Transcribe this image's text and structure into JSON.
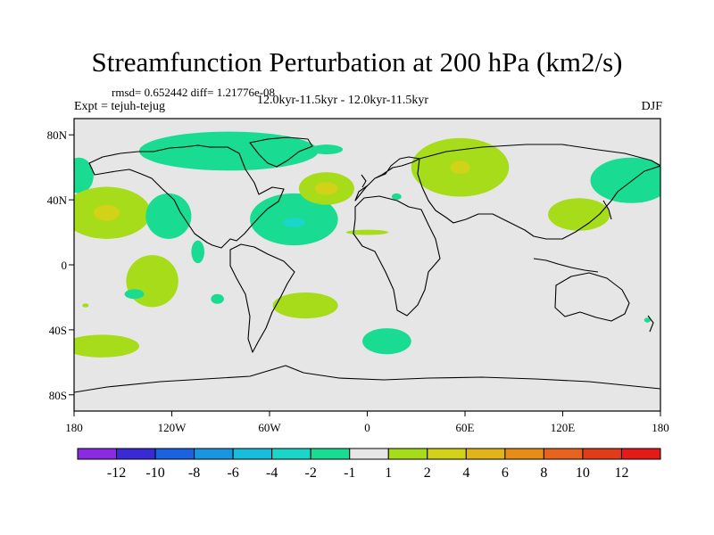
{
  "chart_data": {
    "type": "heatmap",
    "title": "Streamfunction Perturbation at 200 hPa (km2/s)",
    "stats_text": "rmsd= 0.652442 diff= 1.21776e-08",
    "left_label": "Expt = tejuh-tejug",
    "center_label": "12.0kyr-11.5kyr - 12.0kyr-11.5kyr",
    "right_label": "DJF",
    "x_range": [
      -180,
      180
    ],
    "y_range": [
      -90,
      90
    ],
    "x_ticks": [
      {
        "value": -180,
        "label": "180"
      },
      {
        "value": -120,
        "label": "120W"
      },
      {
        "value": -60,
        "label": "60W"
      },
      {
        "value": 0,
        "label": "0"
      },
      {
        "value": 60,
        "label": "60E"
      },
      {
        "value": 120,
        "label": "120E"
      },
      {
        "value": 180,
        "label": "180"
      }
    ],
    "y_ticks": [
      {
        "value": 80,
        "label": "80N"
      },
      {
        "value": 40,
        "label": "40N"
      },
      {
        "value": 0,
        "label": "0"
      },
      {
        "value": -40,
        "label": "40S"
      },
      {
        "value": -80,
        "label": "80S"
      }
    ],
    "colorbar": {
      "colors": [
        "#8a2be2",
        "#3a2ad6",
        "#1a62e0",
        "#1a96e0",
        "#19bddc",
        "#1ad6c8",
        "#19dc92",
        "#e6e6e6",
        "#a6dc19",
        "#d2d219",
        "#e1b419",
        "#e68c19",
        "#e6641e",
        "#e13c19",
        "#e61919"
      ],
      "labels": [
        "-12",
        "-10",
        "-8",
        "-6",
        "-4",
        "-2",
        "-1",
        "1",
        "2",
        "4",
        "6",
        "8",
        "10",
        "12"
      ]
    },
    "background_color": "#e6e6e6",
    "anomalies": [
      {
        "lon": -85,
        "lat": 70,
        "rx": 55,
        "ry": 12,
        "value": -1.5
      },
      {
        "lon": -25,
        "lat": 71,
        "rx": 10,
        "ry": 3,
        "value": -1.5
      },
      {
        "lon": -177,
        "lat": 55,
        "rx": 9,
        "ry": 11,
        "value": -1.5
      },
      {
        "lon": -160,
        "lat": 32,
        "rx": 27,
        "ry": 16,
        "value": 1.5
      },
      {
        "lon": -160,
        "lat": 32,
        "rx": 8,
        "ry": 5,
        "value": 3
      },
      {
        "lon": -122,
        "lat": 30,
        "rx": 14,
        "ry": 14,
        "value": -1.5
      },
      {
        "lon": -45,
        "lat": 28,
        "rx": 27,
        "ry": 16,
        "value": -1.5
      },
      {
        "lon": -45,
        "lat": 26,
        "rx": 7,
        "ry": 3,
        "value": -3
      },
      {
        "lon": -25,
        "lat": 47,
        "rx": 17,
        "ry": 10,
        "value": 1.5
      },
      {
        "lon": -25,
        "lat": 47,
        "rx": 7,
        "ry": 4,
        "value": 3
      },
      {
        "lon": 18,
        "lat": 42,
        "rx": 3,
        "ry": 2,
        "value": -1.5
      },
      {
        "lon": 57,
        "lat": 60,
        "rx": 30,
        "ry": 18,
        "value": 1.5
      },
      {
        "lon": 57,
        "lat": 60,
        "rx": 6,
        "ry": 4,
        "value": 3
      },
      {
        "lon": 162,
        "lat": 52,
        "rx": 25,
        "ry": 14,
        "value": -1.5
      },
      {
        "lon": 130,
        "lat": 31,
        "rx": 19,
        "ry": 10,
        "value": 1.5
      },
      {
        "lon": 0,
        "lat": 20,
        "rx": 13,
        "ry": 1.6,
        "value": 1.5
      },
      {
        "lon": -104,
        "lat": 8,
        "rx": 4,
        "ry": 7,
        "value": -1.5
      },
      {
        "lon": -132,
        "lat": -10,
        "rx": 16,
        "ry": 16,
        "value": 1.5
      },
      {
        "lon": -143,
        "lat": -18,
        "rx": 6,
        "ry": 3,
        "value": -1.5
      },
      {
        "lon": -173,
        "lat": -25,
        "rx": 2,
        "ry": 1.2,
        "value": 1.5
      },
      {
        "lon": -92,
        "lat": -21,
        "rx": 4,
        "ry": 3,
        "value": -1.5
      },
      {
        "lon": -38,
        "lat": -25,
        "rx": 20,
        "ry": 8,
        "value": 1.5
      },
      {
        "lon": -163,
        "lat": -50,
        "rx": 23,
        "ry": 7,
        "value": 1.5
      },
      {
        "lon": 12,
        "lat": -47,
        "rx": 15,
        "ry": 8,
        "value": -1.5
      },
      {
        "lon": 172,
        "lat": -34,
        "rx": 2,
        "ry": 1.5,
        "value": -1.5
      }
    ]
  }
}
